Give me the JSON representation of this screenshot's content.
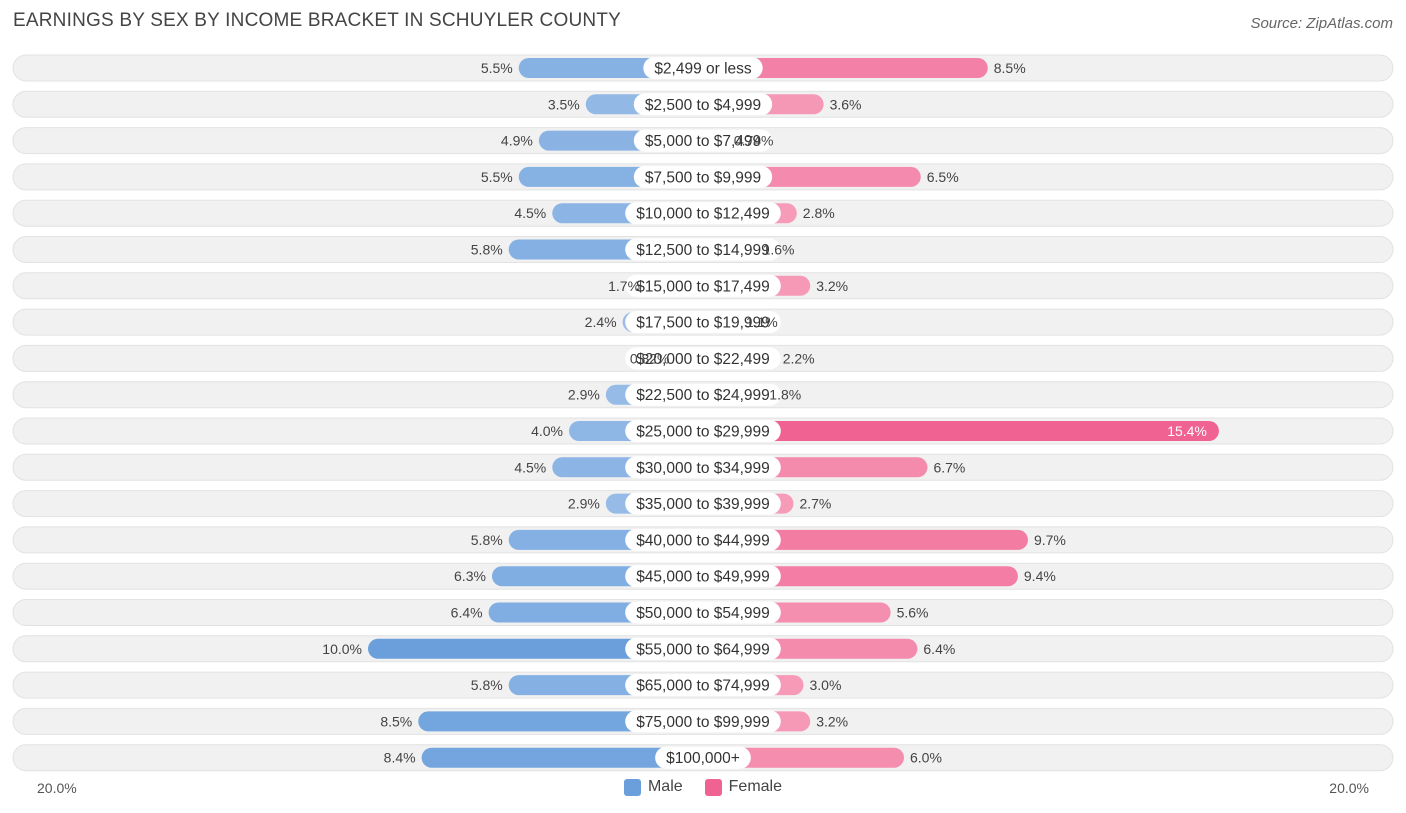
{
  "title": "EARNINGS BY SEX BY INCOME BRACKET IN SCHUYLER COUNTY",
  "source": "Source: ZipAtlas.com",
  "colors": {
    "male": "#6a9fdc",
    "male_light": "#a8c7ec",
    "female": "#f06292",
    "female_light": "#f7a8c0",
    "row_bg": "#f1f1f1"
  },
  "chart_data": {
    "type": "bar",
    "orientation": "horizontal-diverging",
    "title": "EARNINGS BY SEX BY INCOME BRACKET IN SCHUYLER COUNTY",
    "axis_min_label": "20.0%",
    "axis_max_label": "20.0%",
    "xlim": [
      -20,
      20
    ],
    "categories": [
      "$2,499 or less",
      "$2,500 to $4,999",
      "$5,000 to $7,499",
      "$7,500 to $9,999",
      "$10,000 to $12,499",
      "$12,500 to $14,999",
      "$15,000 to $17,499",
      "$17,500 to $19,999",
      "$20,000 to $22,499",
      "$22,500 to $24,999",
      "$25,000 to $29,999",
      "$30,000 to $34,999",
      "$35,000 to $39,999",
      "$40,000 to $44,999",
      "$45,000 to $49,999",
      "$50,000 to $54,999",
      "$55,000 to $64,999",
      "$65,000 to $74,999",
      "$75,000 to $99,999",
      "$100,000+"
    ],
    "series": [
      {
        "name": "Male",
        "values": [
          5.5,
          3.5,
          4.9,
          5.5,
          4.5,
          5.8,
          1.7,
          2.4,
          0.82,
          2.9,
          4.0,
          4.5,
          2.9,
          5.8,
          6.3,
          6.4,
          10.0,
          5.8,
          8.5,
          8.4
        ],
        "labels": [
          "5.5%",
          "3.5%",
          "4.9%",
          "5.5%",
          "4.5%",
          "5.8%",
          "1.7%",
          "2.4%",
          "0.82%",
          "2.9%",
          "4.0%",
          "4.5%",
          "2.9%",
          "5.8%",
          "6.3%",
          "6.4%",
          "10.0%",
          "5.8%",
          "8.5%",
          "8.4%"
        ]
      },
      {
        "name": "Female",
        "values": [
          8.5,
          3.6,
          0.74,
          6.5,
          2.8,
          1.6,
          3.2,
          1.1,
          2.2,
          1.8,
          15.4,
          6.7,
          2.7,
          9.7,
          9.4,
          5.6,
          6.4,
          3.0,
          3.2,
          6.0
        ],
        "labels": [
          "8.5%",
          "3.6%",
          "0.74%",
          "6.5%",
          "2.8%",
          "1.6%",
          "3.2%",
          "1.1%",
          "2.2%",
          "1.8%",
          "15.4%",
          "6.7%",
          "2.7%",
          "9.7%",
          "9.4%",
          "5.6%",
          "6.4%",
          "3.0%",
          "3.2%",
          "6.0%"
        ]
      }
    ],
    "legend": [
      "Male",
      "Female"
    ],
    "legend_position": "bottom-center"
  }
}
